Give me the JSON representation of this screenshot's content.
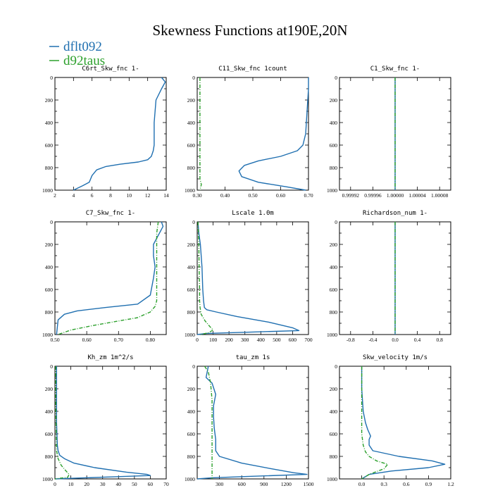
{
  "figure": {
    "title": "Skewness Functions at190E,20N",
    "legend": [
      {
        "label": "dflt092",
        "color": "#1f6fb0",
        "style": "solid"
      },
      {
        "label": "d92taus",
        "color": "#2ca02c",
        "style": "dashdot"
      }
    ]
  },
  "chart_data": [
    {
      "type": "line",
      "title": "C6rt_Skw_fnc  1-",
      "xlim": [
        2,
        14
      ],
      "xticks": [
        2,
        4,
        6,
        8,
        10,
        12,
        14
      ],
      "xtick_labels": [
        "2",
        "4",
        "6",
        "8",
        "10",
        "12",
        "14"
      ],
      "ylim": [
        1000,
        0
      ],
      "yticks": [
        0,
        200,
        400,
        600,
        800,
        1000
      ],
      "ytick_labels": [
        "0",
        "200",
        "400",
        "600",
        "800",
        "1000"
      ],
      "series": [
        {
          "name": "dflt092",
          "color": "#1f6fb0",
          "dash": "",
          "x": [
            13.5,
            13.9,
            13.5,
            12.9,
            12.8,
            12.7,
            12.7,
            12.7,
            12.6,
            12.4,
            12.0,
            11.0,
            9.0,
            7.5,
            6.5,
            6.0,
            5.7,
            5.0,
            4.0
          ],
          "y": [
            0,
            40,
            100,
            200,
            300,
            400,
            500,
            600,
            650,
            700,
            730,
            750,
            770,
            790,
            820,
            870,
            930,
            960,
            1000
          ]
        },
        {
          "name": "d92taus",
          "color": "#2ca02c",
          "dash": "5,2,1,2",
          "x": [],
          "y": []
        }
      ]
    },
    {
      "type": "line",
      "title": "C11_Skw_fnc  1count",
      "xlim": [
        0.3,
        0.7
      ],
      "xticks": [
        0.3,
        0.4,
        0.5,
        0.6,
        0.7
      ],
      "xtick_labels": [
        "0.30",
        "0.40",
        "0.50",
        "0.60",
        "0.70"
      ],
      "ylim": [
        1000,
        0
      ],
      "yticks": [
        0,
        200,
        400,
        600,
        800,
        1000
      ],
      "ytick_labels": [
        "0",
        "200",
        "400",
        "600",
        "800",
        "1000"
      ],
      "series": [
        {
          "name": "dflt092",
          "color": "#1f6fb0",
          "dash": "",
          "x": [
            0.7,
            0.7,
            0.695,
            0.69,
            0.68,
            0.66,
            0.6,
            0.52,
            0.47,
            0.45,
            0.46,
            0.52,
            0.62,
            0.69
          ],
          "y": [
            0,
            100,
            300,
            500,
            600,
            650,
            700,
            740,
            780,
            830,
            880,
            930,
            970,
            1000
          ]
        },
        {
          "name": "d92taus",
          "color": "#2ca02c",
          "dash": "5,2,1,2",
          "x": [
            0.31,
            0.31,
            0.31,
            0.31,
            0.31,
            0.31,
            0.31,
            0.31,
            0.315,
            0.31
          ],
          "y": [
            0,
            100,
            200,
            400,
            600,
            800,
            850,
            900,
            950,
            1000
          ]
        }
      ]
    },
    {
      "type": "line",
      "title": "C1_Skw_fnc  1-",
      "xlim": [
        0.9999,
        1.0001
      ],
      "xticks": [
        0.99992,
        0.99996,
        1.0,
        1.00004,
        1.00008
      ],
      "xtick_labels": [
        "0.99992",
        "0.99996",
        "1.00000",
        "1.00004",
        "1.00008"
      ],
      "ylim": [
        1000,
        0
      ],
      "yticks": [
        0,
        200,
        400,
        600,
        800,
        1000
      ],
      "ytick_labels": [
        "0",
        "200",
        "400",
        "600",
        "800",
        "1000"
      ],
      "series": [
        {
          "name": "dflt092",
          "color": "#1f6fb0",
          "dash": "",
          "x": [
            1.0,
            1.0
          ],
          "y": [
            0,
            1000
          ]
        },
        {
          "name": "d92taus",
          "color": "#2ca02c",
          "dash": "5,2,1,2",
          "x": [
            1.0,
            1.0
          ],
          "y": [
            0,
            1000
          ]
        }
      ]
    },
    {
      "type": "line",
      "title": "C7_Skw_fnc  1-",
      "xlim": [
        0.5,
        0.85
      ],
      "xticks": [
        0.5,
        0.6,
        0.7,
        0.8
      ],
      "xtick_labels": [
        "0.50",
        "0.60",
        "0.70",
        "0.80"
      ],
      "ylim": [
        1000,
        0
      ],
      "yticks": [
        0,
        200,
        400,
        600,
        800,
        1000
      ],
      "ytick_labels": [
        "0",
        "200",
        "400",
        "600",
        "800",
        "1000"
      ],
      "series": [
        {
          "name": "dflt092",
          "color": "#1f6fb0",
          "dash": "",
          "x": [
            0.835,
            0.84,
            0.825,
            0.81,
            0.81,
            0.815,
            0.81,
            0.8,
            0.76,
            0.66,
            0.57,
            0.53,
            0.51,
            0.505
          ],
          "y": [
            0,
            40,
            120,
            200,
            300,
            400,
            500,
            650,
            730,
            760,
            790,
            820,
            870,
            1000
          ]
        },
        {
          "name": "d92taus",
          "color": "#2ca02c",
          "dash": "5,2,1,2",
          "x": [
            0.825,
            0.82,
            0.82,
            0.82,
            0.82,
            0.82,
            0.815,
            0.8,
            0.76,
            0.7,
            0.62,
            0.55,
            0.51
          ],
          "y": [
            0,
            100,
            200,
            400,
            600,
            700,
            750,
            800,
            850,
            880,
            920,
            960,
            1000
          ]
        }
      ]
    },
    {
      "type": "line",
      "title": "Lscale  1.0m",
      "xlim": [
        0,
        700
      ],
      "xticks": [
        0,
        100,
        200,
        300,
        400,
        500,
        600,
        700
      ],
      "xtick_labels": [
        "0",
        "100",
        "200",
        "300",
        "400",
        "500",
        "600",
        "700"
      ],
      "ylim": [
        1000,
        0
      ],
      "yticks": [
        0,
        200,
        400,
        600,
        800,
        1000
      ],
      "ytick_labels": [
        "0",
        "200",
        "400",
        "600",
        "800",
        "1000"
      ],
      "series": [
        {
          "name": "dflt092",
          "color": "#1f6fb0",
          "dash": "",
          "x": [
            5,
            10,
            20,
            30,
            35,
            40,
            45,
            60,
            120,
            250,
            450,
            600,
            640,
            300,
            60,
            0
          ],
          "y": [
            0,
            100,
            200,
            400,
            600,
            700,
            760,
            780,
            800,
            840,
            890,
            940,
            965,
            980,
            990,
            1000
          ]
        },
        {
          "name": "d92taus",
          "color": "#2ca02c",
          "dash": "5,2,1,2",
          "x": [
            5,
            10,
            12,
            15,
            15,
            18,
            25,
            50,
            80,
            100,
            70,
            20
          ],
          "y": [
            0,
            200,
            400,
            600,
            700,
            760,
            820,
            880,
            930,
            960,
            985,
            1000
          ]
        }
      ]
    },
    {
      "type": "line",
      "title": "Richardson_num  1-",
      "xlim": [
        -1,
        1
      ],
      "xticks": [
        -0.8,
        -0.4,
        0.0,
        0.4,
        0.8
      ],
      "xtick_labels": [
        "-0.8",
        "-0.4",
        "0.0",
        "0.4",
        "0.8"
      ],
      "ylim": [
        1000,
        0
      ],
      "yticks": [
        0,
        200,
        400,
        600,
        800,
        1000
      ],
      "ytick_labels": [
        "0",
        "200",
        "400",
        "600",
        "800",
        "1000"
      ],
      "series": [
        {
          "name": "dflt092",
          "color": "#1f6fb0",
          "dash": "",
          "x": [
            0,
            0
          ],
          "y": [
            0,
            1000
          ]
        },
        {
          "name": "d92taus",
          "color": "#2ca02c",
          "dash": "5,2,1,2",
          "x": [
            0,
            0
          ],
          "y": [
            0,
            1000
          ]
        }
      ]
    },
    {
      "type": "line",
      "title": "Kh_zm  1m^2/s",
      "xlim": [
        0,
        70
      ],
      "xticks": [
        0,
        10,
        20,
        30,
        40,
        50,
        60,
        70
      ],
      "xtick_labels": [
        "0",
        "10",
        "20",
        "30",
        "40",
        "50",
        "60",
        "70"
      ],
      "ylim": [
        1000,
        0
      ],
      "yticks": [
        0,
        200,
        400,
        600,
        800,
        1000
      ],
      "ytick_labels": [
        "0",
        "200",
        "400",
        "600",
        "800",
        "1000"
      ],
      "series": [
        {
          "name": "dflt092",
          "color": "#1f6fb0",
          "dash": "",
          "x": [
            1,
            1,
            1,
            1.5,
            2,
            3,
            6,
            12,
            25,
            45,
            58,
            60,
            30,
            0
          ],
          "y": [
            0,
            200,
            500,
            700,
            750,
            790,
            820,
            860,
            900,
            940,
            960,
            970,
            985,
            1000
          ]
        },
        {
          "name": "d92taus",
          "color": "#2ca02c",
          "dash": "5,2,1,2",
          "x": [
            0.5,
            0.5,
            0.8,
            1,
            2,
            4,
            7,
            9,
            8,
            0
          ],
          "y": [
            0,
            300,
            600,
            750,
            820,
            880,
            930,
            960,
            985,
            1000
          ]
        }
      ]
    },
    {
      "type": "line",
      "title": "tau_zm  1s",
      "xlim": [
        0,
        1500
      ],
      "xticks": [
        300,
        600,
        900,
        1200,
        1500
      ],
      "xtick_labels": [
        "300",
        "600",
        "900",
        "1200",
        "1500"
      ],
      "ylim": [
        1000,
        0
      ],
      "yticks": [
        0,
        200,
        400,
        600,
        800,
        1000
      ],
      "ytick_labels": [
        "0",
        "200",
        "400",
        "600",
        "800",
        "1000"
      ],
      "series": [
        {
          "name": "dflt092",
          "color": "#1f6fb0",
          "dash": "",
          "x": [
            150,
            120,
            200,
            250,
            220,
            220,
            230,
            250,
            250,
            300,
            600,
            1000,
            1300,
            1480,
            600,
            200,
            0
          ],
          "y": [
            0,
            100,
            150,
            250,
            350,
            450,
            550,
            650,
            750,
            800,
            860,
            910,
            945,
            960,
            980,
            990,
            1000
          ]
        },
        {
          "name": "d92taus",
          "color": "#2ca02c",
          "dash": "5,2,1,2",
          "x": [
            100,
            150,
            180,
            200,
            200,
            200,
            200,
            200,
            200,
            200,
            200
          ],
          "y": [
            0,
            50,
            150,
            300,
            400,
            500,
            600,
            700,
            800,
            900,
            1000
          ]
        }
      ]
    },
    {
      "type": "line",
      "title": "Skw_velocity  1m/s",
      "xlim": [
        -0.3,
        1.2
      ],
      "xticks": [
        0.0,
        0.3,
        0.6,
        0.9,
        1.2
      ],
      "xtick_labels": [
        "0.0",
        "0.3",
        "0.6",
        "0.9",
        "1.2"
      ],
      "ylim": [
        1000,
        0
      ],
      "yticks": [
        0,
        200,
        400,
        600,
        800,
        1000
      ],
      "ytick_labels": [
        "0",
        "200",
        "400",
        "600",
        "800",
        "1000"
      ],
      "series": [
        {
          "name": "dflt092",
          "color": "#1f6fb0",
          "dash": "",
          "x": [
            0.0,
            0.0,
            0.02,
            0.05,
            0.08,
            0.1,
            0.12,
            0.1,
            0.1,
            0.15,
            0.5,
            0.95,
            1.12,
            0.9,
            0.4,
            0.1,
            0.0
          ],
          "y": [
            0,
            200,
            400,
            500,
            560,
            590,
            620,
            650,
            700,
            750,
            800,
            840,
            870,
            900,
            930,
            960,
            1000
          ]
        },
        {
          "name": "d92taus",
          "color": "#2ca02c",
          "dash": "5,2,1,2",
          "x": [
            0.0,
            0.0,
            0.0,
            0.0,
            0.02,
            0.05,
            0.1,
            0.2,
            0.35,
            0.3,
            0.1,
            0.0
          ],
          "y": [
            0,
            200,
            400,
            600,
            700,
            760,
            800,
            840,
            870,
            910,
            960,
            1000
          ]
        }
      ]
    }
  ]
}
